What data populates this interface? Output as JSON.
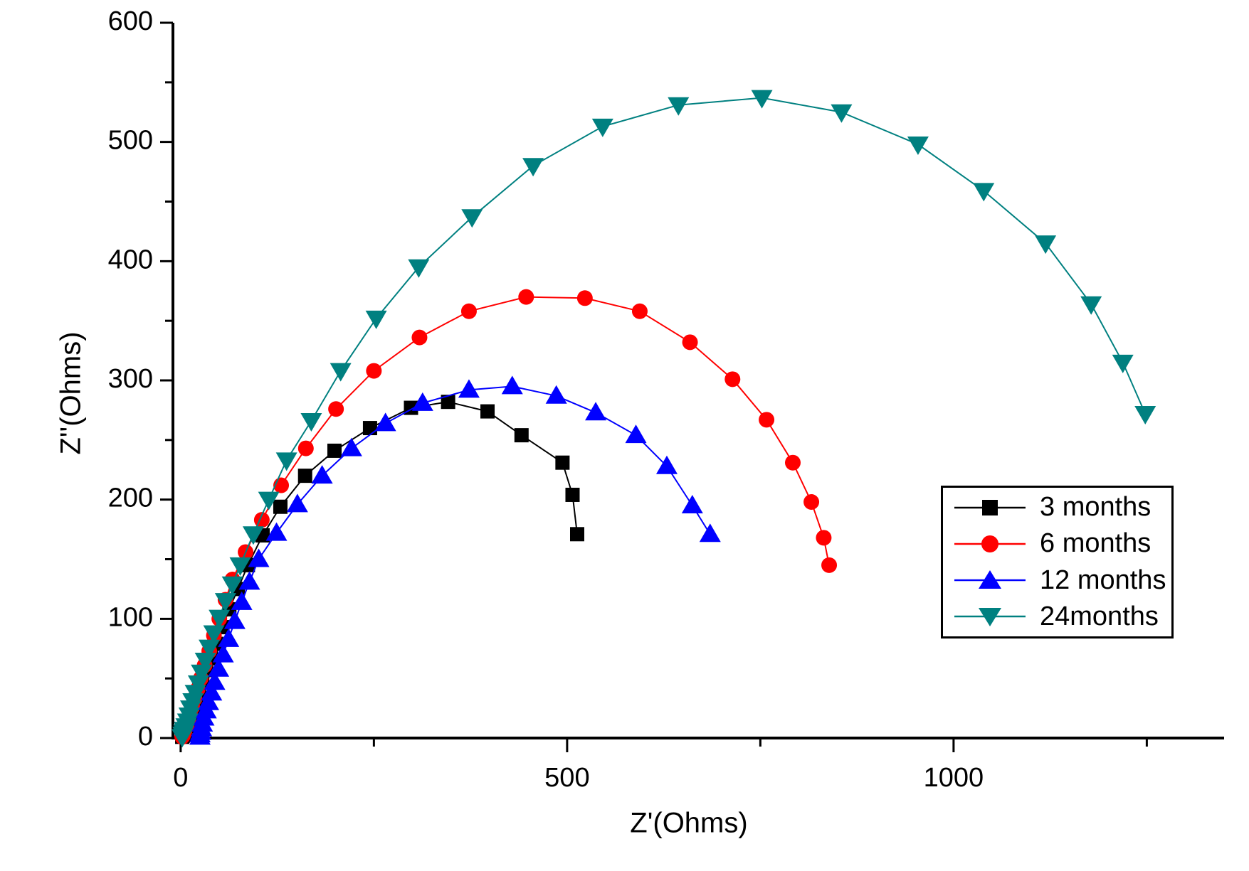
{
  "chart_data": {
    "type": "line",
    "title": "",
    "xlabel": "Z'(Ohms)",
    "ylabel": "Z''(Ohms)",
    "x_range": [
      -10,
      1350
    ],
    "y_range": [
      0,
      600
    ],
    "x_major_ticks": [
      0,
      500,
      1000
    ],
    "x_minor_ticks": [
      250,
      750,
      1250
    ],
    "y_major_ticks": [
      0,
      100,
      200,
      300,
      400,
      500,
      600
    ],
    "y_minor_ticks": [
      50,
      150,
      250,
      350,
      450,
      550
    ],
    "grid": false,
    "background": "#ffffff",
    "axis_color": "#000000",
    "legend_position": "right-middle",
    "series": [
      {
        "label": "3 months",
        "color": "#000000",
        "marker": "square",
        "points": [
          [
            2,
            1
          ],
          [
            3,
            2
          ],
          [
            4,
            3
          ],
          [
            5,
            5
          ],
          [
            6,
            7
          ],
          [
            8,
            10
          ],
          [
            10,
            13
          ],
          [
            12,
            17
          ],
          [
            14,
            22
          ],
          [
            17,
            27
          ],
          [
            20,
            33
          ],
          [
            24,
            40
          ],
          [
            28,
            48
          ],
          [
            33,
            57
          ],
          [
            39,
            67
          ],
          [
            46,
            79
          ],
          [
            54,
            93
          ],
          [
            63,
            108
          ],
          [
            74,
            125
          ],
          [
            87,
            145
          ],
          [
            106,
            170
          ],
          [
            129,
            194
          ],
          [
            161,
            220
          ],
          [
            199,
            241
          ],
          [
            245,
            260
          ],
          [
            298,
            277
          ],
          [
            346,
            282
          ],
          [
            397,
            274
          ],
          [
            441,
            254
          ],
          [
            494,
            231
          ],
          [
            507,
            204
          ],
          [
            513,
            171
          ]
        ]
      },
      {
        "label": "6 months",
        "color": "#ff0000",
        "marker": "circle",
        "points": [
          [
            2,
            1
          ],
          [
            3,
            2
          ],
          [
            4,
            4
          ],
          [
            5,
            6
          ],
          [
            6,
            8
          ],
          [
            8,
            11
          ],
          [
            10,
            15
          ],
          [
            12,
            20
          ],
          [
            15,
            26
          ],
          [
            18,
            33
          ],
          [
            22,
            41
          ],
          [
            26,
            50
          ],
          [
            31,
            61
          ],
          [
            37,
            73
          ],
          [
            43,
            86
          ],
          [
            50,
            100
          ],
          [
            58,
            116
          ],
          [
            67,
            133
          ],
          [
            84,
            156
          ],
          [
            105,
            183
          ],
          [
            130,
            212
          ],
          [
            162,
            243
          ],
          [
            201,
            276
          ],
          [
            250,
            308
          ],
          [
            309,
            336
          ],
          [
            373,
            358
          ],
          [
            447,
            370
          ],
          [
            523,
            369
          ],
          [
            594,
            358
          ],
          [
            659,
            332
          ],
          [
            714,
            301
          ],
          [
            758,
            267
          ],
          [
            792,
            231
          ],
          [
            816,
            198
          ],
          [
            832,
            168
          ],
          [
            839,
            145
          ]
        ]
      },
      {
        "label": "12 months",
        "color": "#0000ff",
        "marker": "triangle-up",
        "points": [
          [
            25,
            1
          ],
          [
            25,
            3
          ],
          [
            26,
            5
          ],
          [
            27,
            8
          ],
          [
            28,
            12
          ],
          [
            30,
            17
          ],
          [
            33,
            23
          ],
          [
            36,
            30
          ],
          [
            40,
            38
          ],
          [
            44,
            47
          ],
          [
            49,
            58
          ],
          [
            55,
            70
          ],
          [
            62,
            83
          ],
          [
            70,
            98
          ],
          [
            79,
            114
          ],
          [
            89,
            131
          ],
          [
            101,
            150
          ],
          [
            124,
            172
          ],
          [
            151,
            196
          ],
          [
            183,
            220
          ],
          [
            221,
            243
          ],
          [
            265,
            264
          ],
          [
            313,
            281
          ],
          [
            373,
            292
          ],
          [
            429,
            295
          ],
          [
            486,
            287
          ],
          [
            537,
            273
          ],
          [
            589,
            254
          ],
          [
            629,
            228
          ],
          [
            662,
            195
          ],
          [
            685,
            171
          ]
        ]
      },
      {
        "label": "24months",
        "color": "#008080",
        "marker": "triangle-down",
        "points": [
          [
            2,
            1
          ],
          [
            3,
            3
          ],
          [
            4,
            5
          ],
          [
            5,
            7
          ],
          [
            7,
            10
          ],
          [
            9,
            14
          ],
          [
            11,
            19
          ],
          [
            13,
            25
          ],
          [
            16,
            31
          ],
          [
            19,
            38
          ],
          [
            23,
            46
          ],
          [
            27,
            55
          ],
          [
            32,
            65
          ],
          [
            37,
            76
          ],
          [
            43,
            88
          ],
          [
            50,
            101
          ],
          [
            58,
            115
          ],
          [
            67,
            129
          ],
          [
            77,
            145
          ],
          [
            94,
            171
          ],
          [
            114,
            200
          ],
          [
            137,
            233
          ],
          [
            169,
            266
          ],
          [
            207,
            308
          ],
          [
            253,
            352
          ],
          [
            308,
            395
          ],
          [
            377,
            437
          ],
          [
            456,
            480
          ],
          [
            546,
            513
          ],
          [
            644,
            531
          ],
          [
            752,
            537
          ],
          [
            855,
            525
          ],
          [
            954,
            498
          ],
          [
            1039,
            459
          ],
          [
            1119,
            415
          ],
          [
            1178,
            364
          ],
          [
            1219,
            315
          ],
          [
            1248,
            272
          ]
        ]
      }
    ]
  }
}
